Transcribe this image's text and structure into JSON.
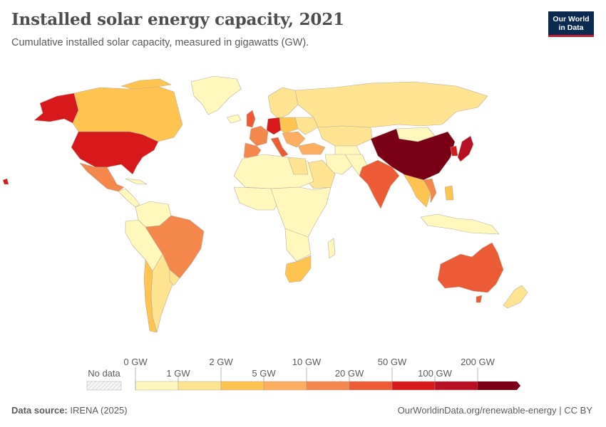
{
  "title": "Installed solar energy capacity, 2021",
  "subtitle": "Cumulative installed solar capacity, measured in gigawatts (GW).",
  "logo": {
    "line1": "Our World",
    "line2": "in Data",
    "bg": "#0b2a4f",
    "accent": "#c21f32"
  },
  "legend": {
    "no_data": "No data",
    "ticks_top": [
      "0 GW",
      "2 GW",
      "10 GW",
      "50 GW",
      "200 GW"
    ],
    "ticks_bottom": [
      "1 GW",
      "5 GW",
      "20 GW",
      "100 GW"
    ],
    "colors": [
      "#fff7bc",
      "#fee391",
      "#fec44f",
      "#fdae61",
      "#f4874c",
      "#ec5a36",
      "#d7191c",
      "#b80f25",
      "#7a0016"
    ]
  },
  "footer": {
    "source_label": "Data source:",
    "source_value": "IRENA (2025)",
    "right_text": "OurWorldinData.org/renewable-energy | CC BY"
  },
  "map_colors": {
    "bin0": "#fff7bc",
    "bin1": "#fee391",
    "bin2": "#fec44f",
    "bin3": "#fdae61",
    "bin4": "#f4874c",
    "bin5": "#ec5a36",
    "bin6": "#d7191c",
    "bin7": "#b80f25",
    "bin8": "#7a0016"
  }
}
